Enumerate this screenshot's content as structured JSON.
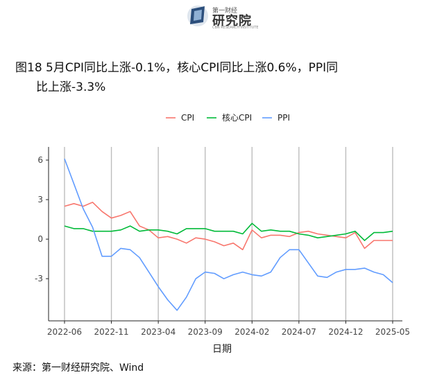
{
  "logo": {
    "top_text": "第一财经",
    "name": "研究院",
    "sub_text": "CBN RESEARCH INSTITUTE"
  },
  "title_line1": "图18 5月CPI同比上涨-0.1%，核心CPI同比上涨0.6%，PPI同",
  "title_line2": "比上涨-3.3%",
  "source": "来源：第一财经研究院、Wind",
  "chart_data": {
    "type": "line",
    "xlabel": "日期",
    "ylabel": "",
    "ylim": [
      -6.2,
      7.0
    ],
    "yticks": [
      -3,
      0,
      3,
      6
    ],
    "grid": "vertical lines at labeled x ticks",
    "legend": "top-center",
    "x": [
      "2022-06",
      "2022-07",
      "2022-08",
      "2022-09",
      "2022-10",
      "2022-11",
      "2022-12",
      "2023-01",
      "2023-02",
      "2023-03",
      "2023-04",
      "2023-05",
      "2023-06",
      "2023-07",
      "2023-08",
      "2023-09",
      "2023-10",
      "2023-11",
      "2023-12",
      "2024-01",
      "2024-02",
      "2024-03",
      "2024-04",
      "2024-05",
      "2024-06",
      "2024-07",
      "2024-08",
      "2024-09",
      "2024-10",
      "2024-11",
      "2024-12",
      "2025-01",
      "2025-02",
      "2025-03",
      "2025-04",
      "2025-05"
    ],
    "xticks": [
      "2022-06",
      "2022-11",
      "2023-04",
      "2023-09",
      "2024-02",
      "2024-07",
      "2024-12",
      "2025-05"
    ],
    "series": [
      {
        "name": "CPI",
        "color": "#F8766D",
        "values": [
          2.5,
          2.7,
          2.5,
          2.8,
          2.1,
          1.6,
          1.8,
          2.1,
          1.0,
          0.7,
          0.1,
          0.2,
          0.0,
          -0.3,
          0.1,
          0.0,
          -0.2,
          -0.5,
          -0.3,
          -0.8,
          0.7,
          0.1,
          0.3,
          0.3,
          0.2,
          0.5,
          0.6,
          0.4,
          0.3,
          0.2,
          0.1,
          0.5,
          -0.7,
          -0.1,
          -0.1,
          -0.1
        ]
      },
      {
        "name": "核心CPI",
        "color": "#00BA38",
        "values": [
          1.0,
          0.8,
          0.8,
          0.6,
          0.6,
          0.6,
          0.7,
          1.0,
          0.6,
          0.7,
          0.7,
          0.6,
          0.4,
          0.8,
          0.8,
          0.8,
          0.6,
          0.6,
          0.6,
          0.4,
          1.2,
          0.6,
          0.7,
          0.6,
          0.6,
          0.4,
          0.3,
          0.1,
          0.2,
          0.3,
          0.4,
          0.6,
          -0.1,
          0.5,
          0.5,
          0.6
        ]
      },
      {
        "name": "PPI",
        "color": "#619CFF",
        "values": [
          6.1,
          4.2,
          2.3,
          0.9,
          -1.3,
          -1.3,
          -0.7,
          -0.8,
          -1.4,
          -2.5,
          -3.6,
          -4.6,
          -5.4,
          -4.4,
          -3.0,
          -2.5,
          -2.6,
          -3.0,
          -2.7,
          -2.5,
          -2.7,
          -2.8,
          -2.5,
          -1.4,
          -0.8,
          -0.8,
          -1.8,
          -2.8,
          -2.9,
          -2.5,
          -2.3,
          -2.3,
          -2.2,
          -2.5,
          -2.7,
          -3.3
        ]
      }
    ]
  }
}
